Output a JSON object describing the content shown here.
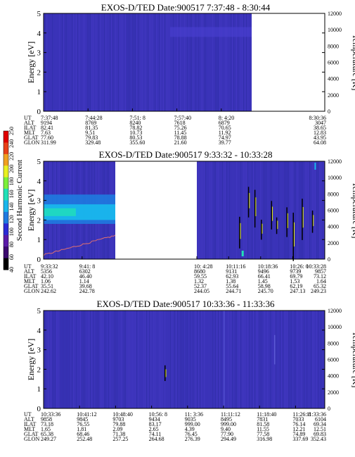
{
  "colors": {
    "background": "#3a33b8",
    "colormap": [
      "#000000",
      "#3b0a6e",
      "#5a1aa8",
      "#2b2bd6",
      "#1f7ae0",
      "#19b6ec",
      "#21e0b8",
      "#7cf03a",
      "#e8f020",
      "#f0a020",
      "#e84018",
      "#e00000"
    ]
  },
  "colorbar": {
    "label": "Second Harmonic Current",
    "ticks": [
      "40",
      "60",
      "80",
      "100",
      "120",
      "140",
      "160",
      "180",
      "200",
      "220",
      "240",
      "250"
    ]
  },
  "chart_data": [
    {
      "type": "heatmap",
      "title": "EXOS-D/TED   Date:900517   7:37:48 - 8:30:44",
      "ylabel": "Energy [eV]",
      "y2label": "Temperature [K]",
      "ylim": [
        0,
        5
      ],
      "yticks": [
        "0",
        "1",
        "2",
        "3",
        "4",
        "5"
      ],
      "y2lim": [
        0,
        12000
      ],
      "y2ticks": [
        "0",
        "2000",
        "4000",
        "6000",
        "8000",
        "10000",
        "12000"
      ],
      "data_coverage": [
        [
          0,
          0.74
        ]
      ],
      "table": {
        "labels": [
          "UT",
          "ALT",
          "ILAT",
          "MLT",
          "GLAT",
          "GLON"
        ],
        "columns": [
          {
            "pos": 0.0,
            "values": [
              "7:37:48",
              "9194",
              "82.41",
              "7.63",
              "77.60",
              "311.99"
            ]
          },
          {
            "pos": 0.158,
            "values": [
              "7:44:28",
              "8769",
              "81.35",
              "9.51",
              "79.83",
              "329.48"
            ]
          },
          {
            "pos": 0.316,
            "values": [
              "7:51: 8",
              "8240",
              "78.82",
              "10.73",
              "80.53",
              "355.60"
            ]
          },
          {
            "pos": 0.474,
            "values": [
              "7:57:40",
              "7618",
              "75.26",
              "11.45",
              "78.88",
              "21.60"
            ]
          },
          {
            "pos": 0.632,
            "values": [
              "8: 4:20",
              "6879",
              "70.65",
              "11.92",
              "74.97",
              "39.77"
            ]
          },
          {
            "pos": 1.0,
            "values": [
              "8:30:36",
              "3047",
              "38.65",
              "12.83",
              "43.95",
              "64.08"
            ]
          }
        ]
      }
    },
    {
      "type": "heatmap",
      "title": "EXOS-D/TED   Date:900517   9:33:32 - 10:33:28",
      "ylabel": "Energy [eV]",
      "y2label": "Temperature [K]",
      "ylim": [
        0,
        5
      ],
      "yticks": [
        "0",
        "1",
        "2",
        "3",
        "4",
        "5"
      ],
      "y2lim": [
        0,
        12000
      ],
      "y2ticks": [
        "0",
        "2000",
        "4000",
        "6000",
        "8000",
        "10000",
        "12000"
      ],
      "data_coverage": [
        [
          0,
          0.255
        ],
        [
          0.545,
          1.0
        ]
      ],
      "table": {
        "labels": [
          "UT",
          "ALT",
          "ILAT",
          "MLT",
          "GLAT",
          "GLON"
        ],
        "columns": [
          {
            "pos": 0.0,
            "values": [
              "9:33:32",
              "5356",
              "42.10",
              "1.06",
              "35.51",
              "242.62"
            ]
          },
          {
            "pos": 0.137,
            "values": [
              "9:41: 8",
              "6302",
              "46.40",
              "1.14",
              "39.68",
              "242.78"
            ]
          },
          {
            "pos": 0.545,
            "values": [
              "10: 4:28",
              "8680",
              "59.55",
              "1.32",
              "52.37",
              "244.05"
            ]
          },
          {
            "pos": 0.658,
            "values": [
              "10:11:16",
              "9131",
              "62.93",
              "1.38",
              "55.64",
              "244.71"
            ]
          },
          {
            "pos": 0.772,
            "values": [
              "10:18:36",
              "9496",
              "66.41",
              "1.45",
              "58.98",
              "245.70"
            ]
          },
          {
            "pos": 0.886,
            "values": [
              "10:26: 0",
              "9739",
              "69.79",
              "1.53",
              "62.19",
              "247.13"
            ]
          },
          {
            "pos": 1.0,
            "values": [
              "10:33:28",
              "9857",
              "73.12",
              "1.64",
              "65.32",
              "249.23"
            ]
          }
        ]
      }
    },
    {
      "type": "heatmap",
      "title": "EXOS-D/TED   Date:900517   10:33:36 - 11:33:36",
      "ylabel": "Energy [eV]",
      "y2label": "Temperature [K]",
      "ylim": [
        0,
        5
      ],
      "yticks": [
        "0",
        "1",
        "2",
        "3",
        "4",
        "5"
      ],
      "y2lim": [
        0,
        12000
      ],
      "y2ticks": [
        "0",
        "2000",
        "4000",
        "6000",
        "8000",
        "10000",
        "12000"
      ],
      "data_coverage": [
        [
          0,
          1.0
        ]
      ],
      "table": {
        "labels": [
          "UT",
          "ALT",
          "ILAT",
          "MLT",
          "GLAT",
          "GLON"
        ],
        "columns": [
          {
            "pos": 0.0,
            "values": [
              "10:33:36",
              "9858",
              "73.18",
              "1.65",
              "65.38",
              "249.27"
            ]
          },
          {
            "pos": 0.128,
            "values": [
              "10:41:12",
              "9845",
              "76.55",
              "1.81",
              "68.46",
              "252.48"
            ]
          },
          {
            "pos": 0.256,
            "values": [
              "10:48:40",
              "9703",
              "79.88",
              "2.09",
              "71.38",
              "257.25"
            ]
          },
          {
            "pos": 0.384,
            "values": [
              "10:56: 8",
              "9434",
              "83.17",
              "2.65",
              "74.11",
              "264.68"
            ]
          },
          {
            "pos": 0.512,
            "values": [
              "11: 3:36",
              "9035",
              "999.00",
              "4.39",
              "76.45",
              "276.39"
            ]
          },
          {
            "pos": 0.64,
            "values": [
              "11:11:12",
              "8495",
              "999.00",
              "9.40",
              "77.90",
              "294.49"
            ]
          },
          {
            "pos": 0.768,
            "values": [
              "11:18:40",
              "7831",
              "81.58",
              "11.55",
              "77.58",
              "316.98"
            ]
          },
          {
            "pos": 0.896,
            "values": [
              "11:26: 8",
              "7033",
              "76.14",
              "12.21",
              "74.89",
              "337.69"
            ]
          },
          {
            "pos": 1.0,
            "values": [
              "11:33:36",
              "6104",
              "69.34",
              "12.51",
              "69.83",
              "352.43"
            ]
          }
        ]
      }
    }
  ]
}
